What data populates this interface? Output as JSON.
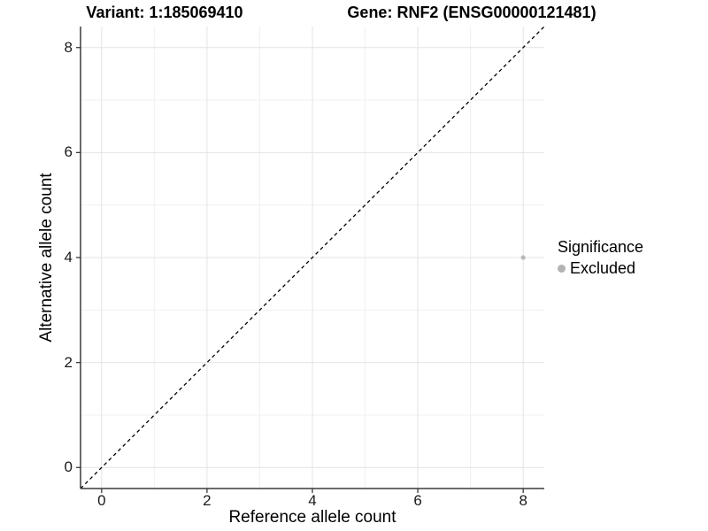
{
  "chart_data": {
    "type": "scatter",
    "title_left": "Variant: 1:185069410",
    "title_right": "Gene: RNF2 (ENSG00000121481)",
    "xlabel": "Reference allele count",
    "ylabel": "Alternative allele count",
    "xlim": [
      -0.4,
      8.4
    ],
    "ylim": [
      -0.4,
      8.4
    ],
    "x_ticks": [
      "0",
      "2",
      "4",
      "6",
      "8"
    ],
    "x_tick_values": [
      0,
      2,
      4,
      6,
      8
    ],
    "y_ticks": [
      "0",
      "2",
      "4",
      "6",
      "8"
    ],
    "y_tick_values": [
      0,
      2,
      4,
      6,
      8
    ],
    "x_minor": [
      1,
      3,
      5,
      7
    ],
    "y_minor": [
      1,
      3,
      5,
      7
    ],
    "grid": true,
    "reference_line": {
      "type": "identity",
      "slope": 1,
      "intercept": 0,
      "style": "dashed",
      "color": "#000000"
    },
    "series": [
      {
        "name": "Excluded",
        "color": "#b9b9b9",
        "points": [
          {
            "x": 8,
            "y": 4
          }
        ]
      }
    ],
    "legend": {
      "title": "Significance",
      "position": "right",
      "items": [
        {
          "label": "Excluded",
          "color": "#b3b3b3"
        }
      ]
    },
    "colors": {
      "background": "#ffffff",
      "grid_major": "#e4e4e4",
      "grid_minor": "#f0f0f0",
      "axis_line": "#3a3a3a",
      "tick_text": "#1a1a1a",
      "point": "#b9b9b9"
    }
  }
}
